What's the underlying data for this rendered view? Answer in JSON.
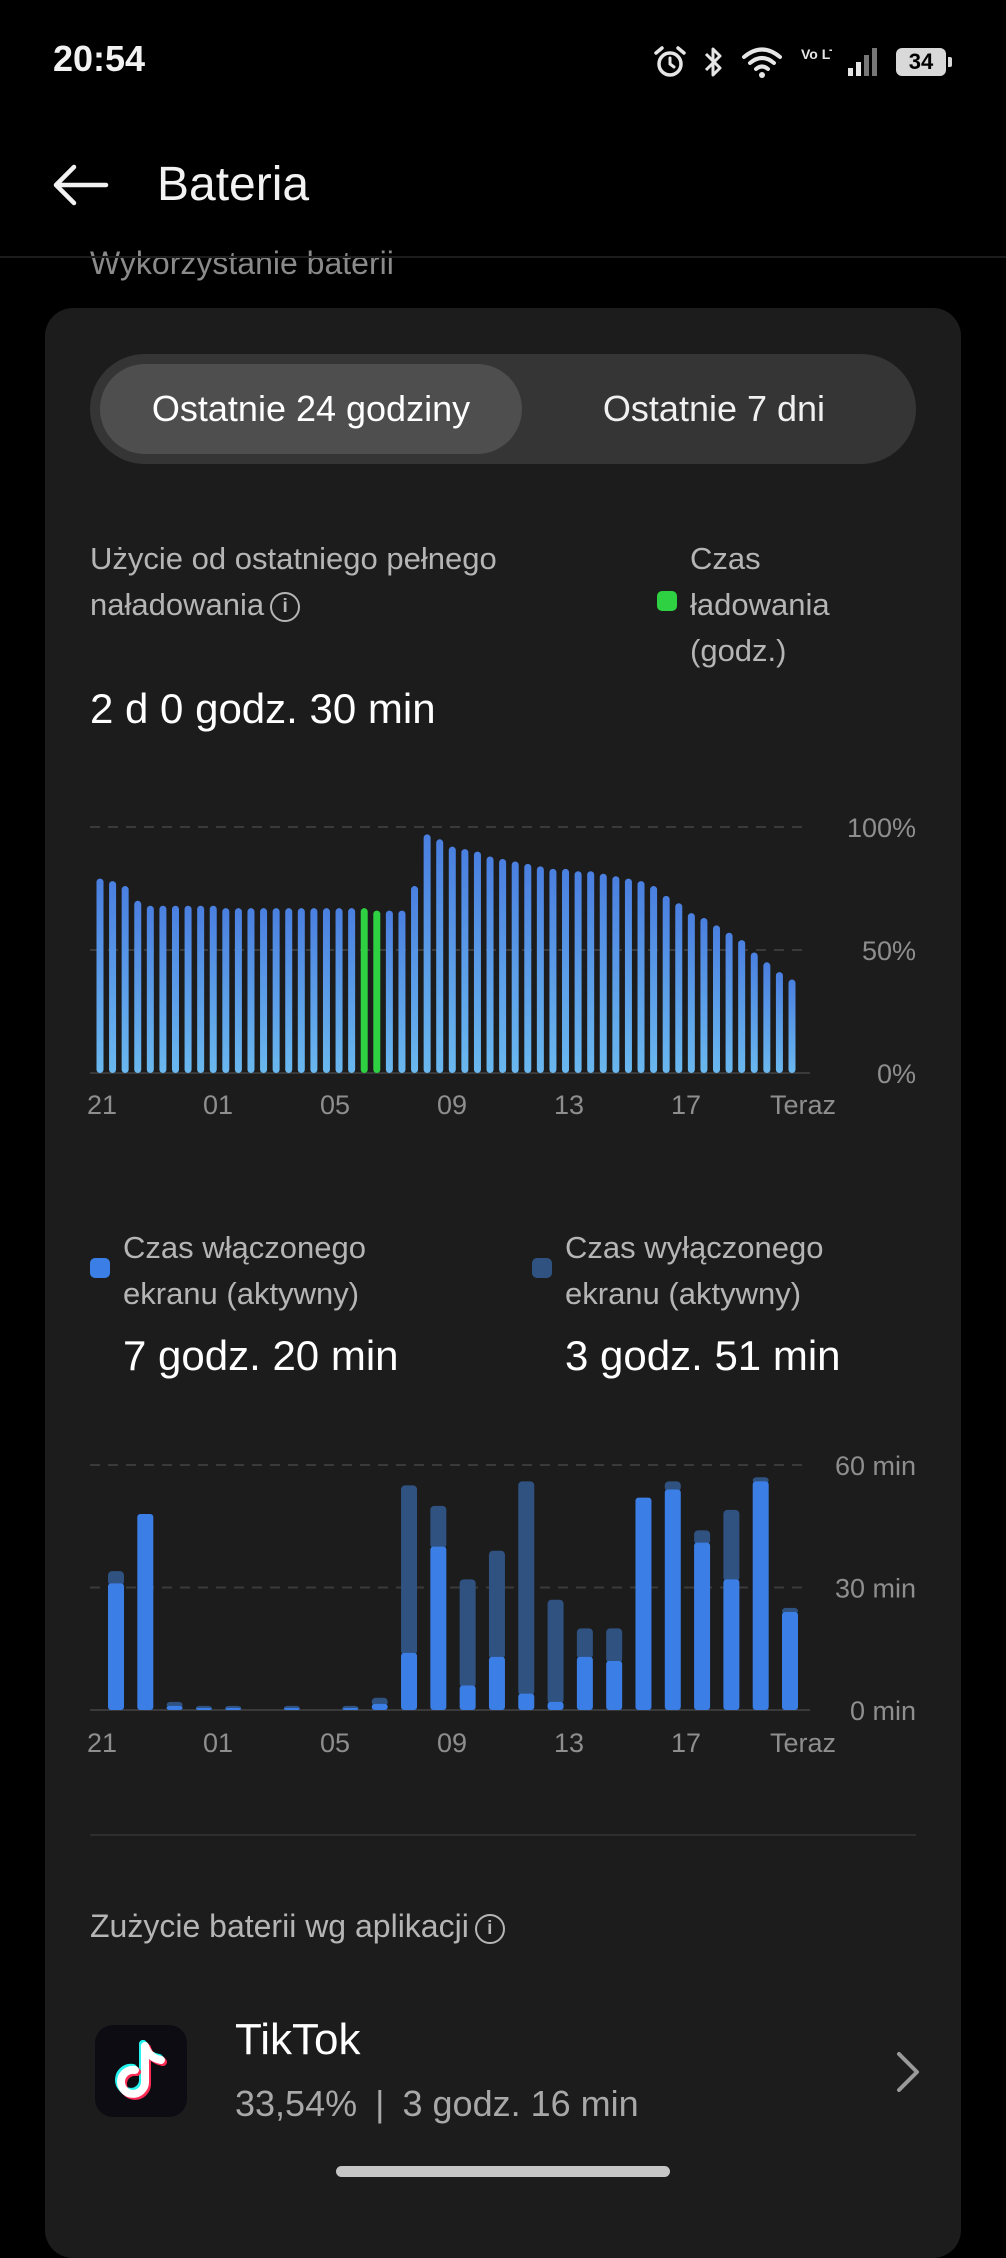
{
  "status_bar": {
    "time": "20:54",
    "battery_level": "34",
    "network_label": "Vo LTE"
  },
  "header": {
    "title": "Bateria"
  },
  "section_title": "Wykorzystanie baterii",
  "tabs": [
    {
      "label": "Ostatnie 24 godziny",
      "active": true
    },
    {
      "label": "Ostatnie 7 dni",
      "active": false
    }
  ],
  "usage": {
    "label": "Użycie od ostatniego pełnego naładowania",
    "value": "2 d 0 godz. 30 min",
    "charging_legend": "Czas ładowania (godz.)"
  },
  "screen_time": {
    "on": {
      "label": "Czas włączonego ekranu (aktywny)",
      "value": "7 godz. 20 min"
    },
    "off": {
      "label": "Czas wyłączonego ekranu (aktywny)",
      "value": "3 godz. 51 min"
    }
  },
  "apps": {
    "label": "Zużycie baterii wg aplikacji",
    "items": [
      {
        "name": "TikTok",
        "percent": "33,54%",
        "duration": "3 godz. 16 min"
      }
    ]
  },
  "colors": {
    "charging": "#2ed141",
    "battery_bar_top": "#4a7fe0",
    "battery_bar_bottom": "#6ab8ef",
    "screen_on": "#3b7ee6",
    "screen_off": "#2f5280"
  },
  "chart_data": [
    {
      "type": "bar",
      "name": "battery_level",
      "x_tick_labels": [
        "21",
        "01",
        "05",
        "09",
        "13",
        "17",
        "Teraz"
      ],
      "y_tick_labels": [
        "100%",
        "50%",
        "0%"
      ],
      "ylim": [
        0,
        100
      ],
      "charging_indices": [
        21,
        22
      ],
      "values": [
        79,
        78,
        76,
        70,
        68,
        68,
        68,
        68,
        68,
        68,
        67,
        67,
        67,
        67,
        67,
        67,
        67,
        67,
        67,
        67,
        67,
        67,
        66,
        66,
        66,
        76,
        97,
        95,
        92,
        91,
        90,
        88,
        87,
        86,
        85,
        84,
        83,
        83,
        82,
        82,
        81,
        80,
        79,
        78,
        76,
        72,
        69,
        65,
        63,
        60,
        57,
        54,
        49,
        45,
        41,
        38
      ]
    },
    {
      "type": "bar",
      "name": "screen_time",
      "x_tick_labels": [
        "21",
        "01",
        "05",
        "09",
        "13",
        "17",
        "Teraz"
      ],
      "y_tick_labels": [
        "60 min",
        "30 min",
        "0 min"
      ],
      "ylim": [
        0,
        60
      ],
      "series": [
        {
          "name": "Czas włączonego ekranu (aktywny)",
          "values": [
            31,
            48,
            1,
            0.5,
            0.5,
            0,
            0.5,
            0,
            0.5,
            1.5,
            14,
            40,
            6,
            13,
            4,
            2,
            13,
            12,
            52,
            54,
            41,
            32,
            56,
            24
          ]
        },
        {
          "name": "Czas wyłączonego ekranu (aktywny)",
          "values": [
            3,
            0,
            1,
            0.5,
            0.5,
            0,
            0.5,
            0,
            0.5,
            1.5,
            41,
            10,
            26,
            26,
            52,
            25,
            7,
            8,
            0,
            2,
            3,
            17,
            1,
            1
          ]
        }
      ]
    }
  ]
}
